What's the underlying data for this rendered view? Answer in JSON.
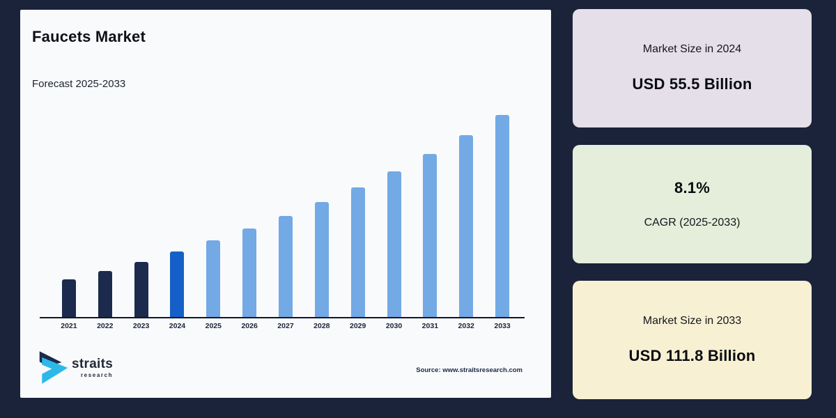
{
  "page": {
    "background": "#1a2339"
  },
  "chart_card": {
    "background": "#f9fafc",
    "title": "Faucets Market",
    "subtitle": "Forecast 2025-2033",
    "source": "Source: www.straitsresearch.com",
    "logo": {
      "line1": "straits",
      "line2": "research",
      "mark_dark": "#1b2b4d",
      "mark_cyan": "#2cb9e8"
    }
  },
  "chart_data": {
    "type": "bar",
    "title": "Faucets Market",
    "subtitle": "Forecast 2025-2033",
    "categories": [
      "2021",
      "2022",
      "2023",
      "2024",
      "2025",
      "2026",
      "2027",
      "2028",
      "2029",
      "2030",
      "2031",
      "2032",
      "2033"
    ],
    "values": [
      43.9,
      47.5,
      51.3,
      55.5,
      60.0,
      64.9,
      70.1,
      75.8,
      82.0,
      88.6,
      95.8,
      103.6,
      111.8
    ],
    "unit": "USD Billion",
    "series_name": "Market Size",
    "roles": [
      "historical",
      "historical",
      "historical",
      "base_year",
      "forecast",
      "forecast",
      "forecast",
      "forecast",
      "forecast",
      "forecast",
      "forecast",
      "forecast",
      "forecast"
    ],
    "colors": {
      "historical": "#1c2a4d",
      "base_year": "#1560c8",
      "forecast": "#73a9e5"
    },
    "labeled_points": {
      "2024": "USD 55.5 Billion",
      "2033": "USD 111.8 Billion"
    },
    "cagr": "8.1%",
    "layout": {
      "y_axis_visible": false,
      "x_baseline_only": true,
      "grid": false,
      "legend": false
    }
  },
  "stat_cards": [
    {
      "name": "market-size-2024-card",
      "background": "#e4dfe8",
      "lines": [
        {
          "text": "Market Size in 2024",
          "style": "label"
        },
        {
          "text": "USD 55.5 Billion",
          "style": "value"
        }
      ]
    },
    {
      "name": "cagr-card",
      "background": "#e5eeda",
      "lines": [
        {
          "text": "8.1%",
          "style": "value"
        },
        {
          "text": "CAGR (2025-2033)",
          "style": "label"
        }
      ]
    },
    {
      "name": "market-size-2033-card",
      "background": "#f7f0d2",
      "lines": [
        {
          "text": "Market Size in 2033",
          "style": "label"
        },
        {
          "text": "USD 111.8 Billion",
          "style": "value"
        }
      ]
    }
  ]
}
